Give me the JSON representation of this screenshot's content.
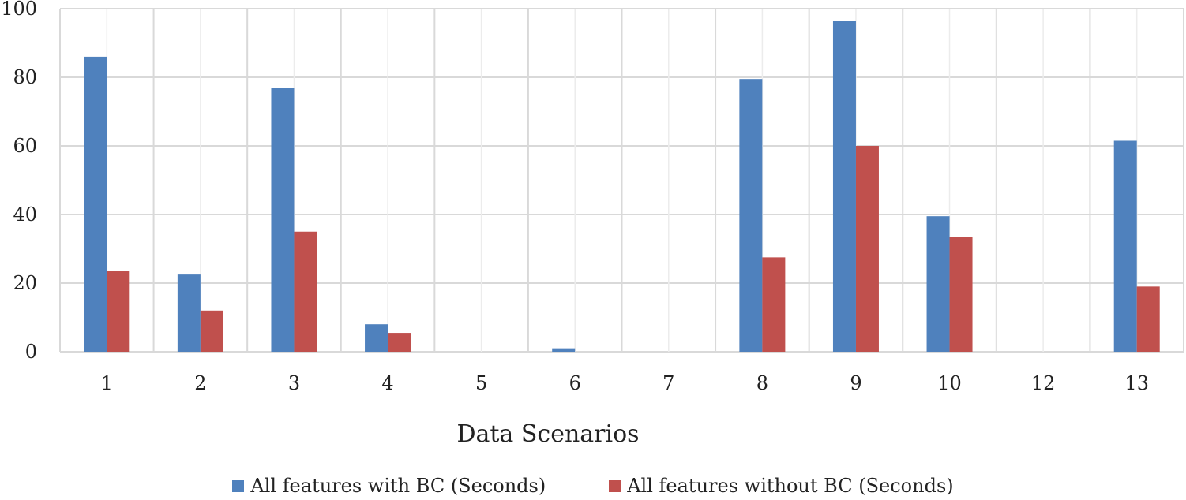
{
  "chart_data": {
    "type": "bar",
    "xlabel": "Data Scenarios",
    "ylabel": "",
    "ylim": [
      0,
      100
    ],
    "yticks": [
      0,
      20,
      40,
      60,
      80,
      100
    ],
    "grid": true,
    "legend_position": "bottom",
    "categories": [
      "1",
      "2",
      "3",
      "4",
      "5",
      "6",
      "7",
      "8",
      "9",
      "10",
      "12",
      "13"
    ],
    "series": [
      {
        "name": "All features with BC (Seconds)",
        "color": "#4F81BD",
        "values": [
          86,
          22.5,
          77,
          8,
          0,
          1,
          0,
          79.5,
          96.5,
          39.5,
          0,
          61.5
        ]
      },
      {
        "name": "All features without BC (Seconds)",
        "color": "#C0504D",
        "values": [
          23.5,
          12,
          35,
          5.5,
          0,
          0,
          0,
          27.5,
          60,
          33.5,
          0,
          19
        ]
      }
    ]
  }
}
